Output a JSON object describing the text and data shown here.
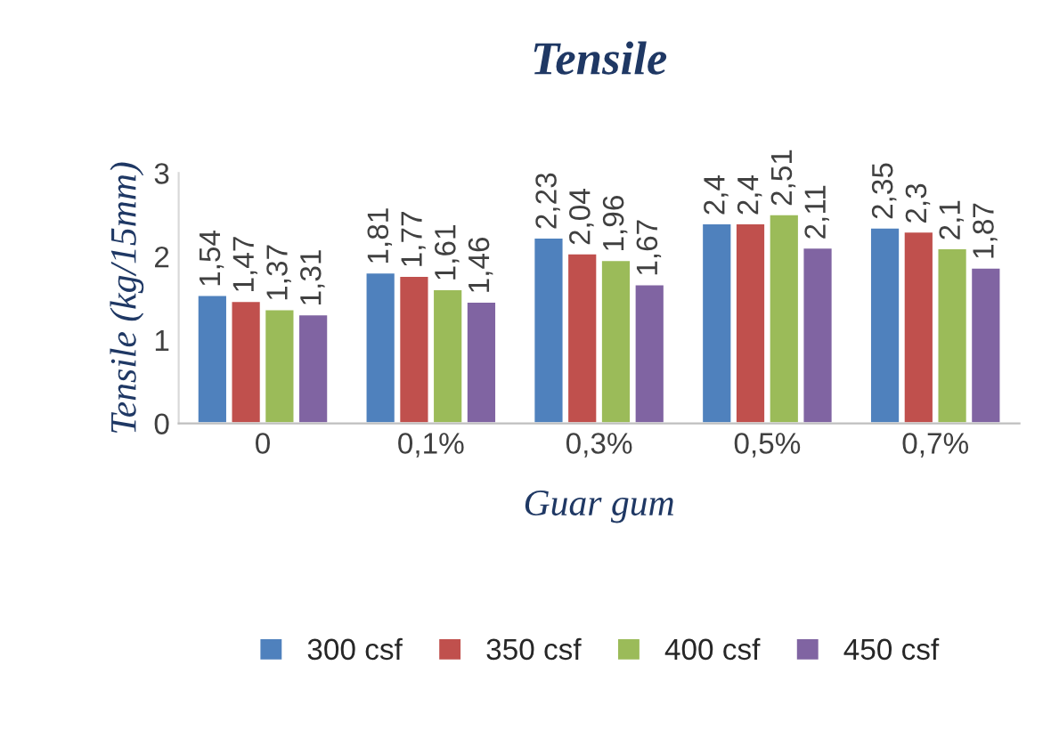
{
  "chart_data": {
    "type": "bar",
    "title": "Tensile",
    "xlabel": "Guar gum",
    "ylabel": "Tensile (kg/15mm)",
    "categories": [
      "0",
      "0,1%",
      "0,3%",
      "0,5%",
      "0,7%"
    ],
    "series": [
      {
        "name": "300 csf",
        "color": "#4f81bd",
        "values": [
          1.54,
          1.81,
          2.23,
          2.4,
          2.35
        ],
        "value_labels": [
          "1,54",
          "1,81",
          "2,23",
          "2,4",
          "2,35"
        ]
      },
      {
        "name": "350 csf",
        "color": "#c0504d",
        "values": [
          1.47,
          1.77,
          2.04,
          2.4,
          2.3
        ],
        "value_labels": [
          "1,47",
          "1,77",
          "2,04",
          "2,4",
          "2,3"
        ]
      },
      {
        "name": "400 csf",
        "color": "#9bbb59",
        "values": [
          1.37,
          1.61,
          1.96,
          2.51,
          2.1
        ],
        "value_labels": [
          "1,37",
          "1,61",
          "1,96",
          "2,51",
          "2,1"
        ]
      },
      {
        "name": "450 csf",
        "color": "#8064a2",
        "values": [
          1.31,
          1.46,
          1.67,
          2.11,
          1.87
        ],
        "value_labels": [
          "1,31",
          "1,46",
          "1,67",
          "2,11",
          "1,87"
        ]
      }
    ],
    "ylim": [
      0,
      3
    ],
    "yticks": [
      0,
      1,
      2,
      3
    ],
    "grid": false,
    "legend": "bottom"
  }
}
